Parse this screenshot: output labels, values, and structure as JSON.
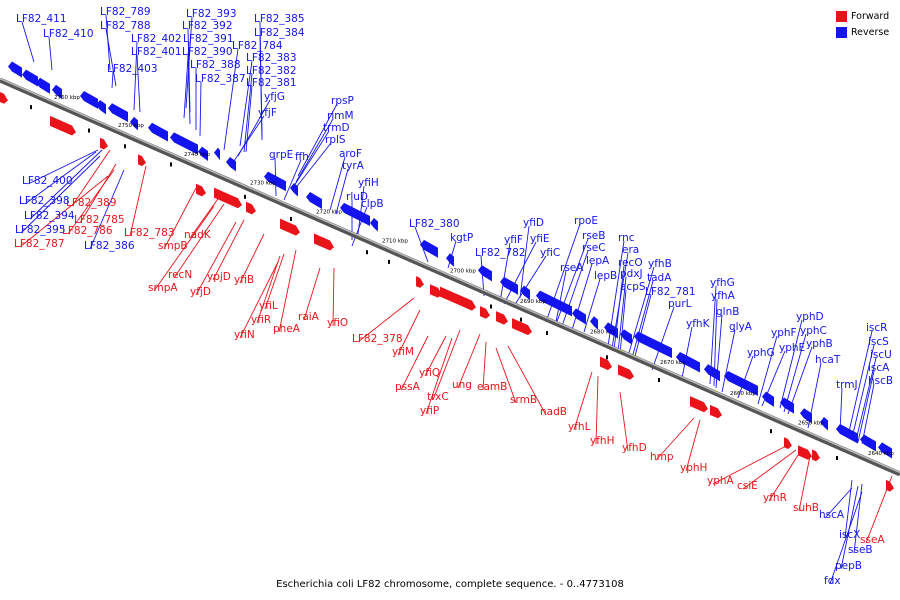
{
  "caption": "Escherichia coli LF82 chromosome, complete sequence. - 0..4773108",
  "legend": [
    {
      "label": "Forward",
      "color": "#e8141a"
    },
    {
      "label": "Reverse",
      "color": "#1414f0"
    }
  ],
  "ticks": [
    "2760 kbp",
    "2750 kbp",
    "2740 kbp",
    "2730 kbp",
    "2720 kbp",
    "2710 kbp",
    "2700 kbp",
    "2690 kbp",
    "2680 kbp",
    "2670 kbp",
    "2660 kbp",
    "2650 kbp",
    "2640 kbp"
  ],
  "labels": {
    "blue": [
      "LF82_411",
      "LF82_410",
      "LF82_789",
      "LF82_788",
      "LF82_402",
      "LF82_401",
      "LF82_403",
      "LF82_393",
      "LF82_392",
      "LF82_391",
      "LF82_390",
      "LF82_388",
      "LF82_387",
      "LF82_385",
      "LF82_384",
      "LF82_784",
      "LF82_383",
      "LF82_382",
      "LF82_381",
      "yfjG",
      "yfjF",
      "rpsP",
      "rimM",
      "trmD",
      "rplS",
      "grpE",
      "ffh",
      "aroF",
      "tyrA",
      "yfiH",
      "rluD",
      "clpB",
      "LF82_380",
      "kgtP",
      "yfiD",
      "LF82_782",
      "yfiF",
      "yfiE",
      "yfiC",
      "rpoE",
      "rseB",
      "rseC",
      "rseA",
      "lepA",
      "lepB",
      "rnc",
      "era",
      "recO",
      "pdxJ",
      "acpS",
      "yfhB",
      "tadA",
      "LF82_781",
      "purL",
      "yfhK",
      "yfhG",
      "yfhA",
      "glnB",
      "glyA",
      "yphG",
      "yphF",
      "yphE",
      "yphD",
      "yphC",
      "yphB",
      "hcaT",
      "trmJ",
      "iscR",
      "iscS",
      "iscU",
      "iscA",
      "hscB",
      "hscA",
      "iscX",
      "pepB",
      "sseB",
      "fdx",
      "LF82_400",
      "LF82_398",
      "LF82_394",
      "LF82_395",
      "LF82_386"
    ],
    "red": [
      "LF82_389",
      "LF82_785",
      "LF82_786",
      "LF82_787",
      "LF82_783",
      "smpB",
      "nadK",
      "recN",
      "smpA",
      "ypjD",
      "yfjD",
      "yfiB",
      "yfiL",
      "yfiR",
      "yfiN",
      "pheA",
      "raiA",
      "yfiO",
      "LF82_378",
      "yfiM",
      "yfiQ",
      "pssA",
      "trxC",
      "yfiP",
      "ung",
      "eamB",
      "srmB",
      "nadB",
      "yfhL",
      "yfhH",
      "yfhD",
      "hmp",
      "yphH",
      "yphA",
      "csiE",
      "yfhR",
      "suhB",
      "sseA"
    ]
  }
}
